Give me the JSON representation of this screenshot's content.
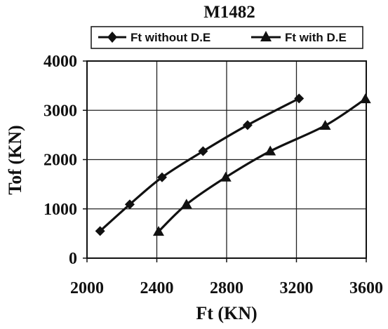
{
  "chart_data": {
    "type": "line",
    "title": "M1482",
    "xlabel": "Ft (KN)",
    "ylabel": "Tof (KN)",
    "xlim": [
      2000,
      3600
    ],
    "ylim": [
      0,
      4000
    ],
    "x_ticks": [
      "2000",
      "2400",
      "2800",
      "3200",
      "3600"
    ],
    "y_ticks": [
      "0",
      "1000",
      "2000",
      "3000",
      "4000"
    ],
    "grid": true,
    "legend_position": "top",
    "series": [
      {
        "name": "Ft without D.E",
        "marker": "diamond",
        "points": [
          [
            2075,
            550
          ],
          [
            2245,
            1090
          ],
          [
            2430,
            1640
          ],
          [
            2665,
            2170
          ],
          [
            2920,
            2700
          ],
          [
            3215,
            3240
          ]
        ]
      },
      {
        "name": "Ft with D.E",
        "marker": "triangle",
        "points": [
          [
            2410,
            540
          ],
          [
            2570,
            1090
          ],
          [
            2795,
            1640
          ],
          [
            3050,
            2170
          ],
          [
            3365,
            2690
          ],
          [
            3595,
            3230
          ]
        ]
      }
    ]
  }
}
